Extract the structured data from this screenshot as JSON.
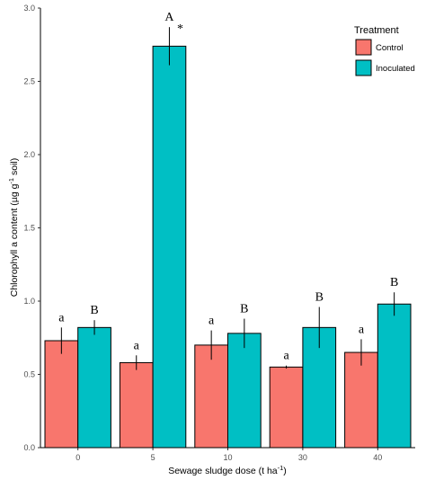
{
  "chart_data": {
    "type": "bar",
    "title": "",
    "xlabel": "Sewage sludge dose (t ha",
    "xlabel_sup": "-1",
    "xlabel_end": ")",
    "ylabel": "Chlorophyll a content (µg g",
    "ylabel_sup": "-1",
    "ylabel_end": " soil)",
    "categories": [
      "0",
      "5",
      "10",
      "30",
      "40"
    ],
    "ylim": [
      0,
      3.0
    ],
    "y_ticks": [
      "0.0",
      "0.5",
      "1.0",
      "1.5",
      "2.0",
      "2.5",
      "3.0"
    ],
    "grid": false,
    "legend_title": "Treatment",
    "legend_position": "top-right",
    "series": [
      {
        "name": "Control",
        "color": "#F8766D",
        "values": [
          0.73,
          0.58,
          0.7,
          0.55,
          0.65
        ],
        "errors": [
          0.09,
          0.05,
          0.1,
          0.01,
          0.09
        ],
        "letters": [
          "a",
          "a",
          "a",
          "a",
          "a"
        ]
      },
      {
        "name": "Inoculated",
        "color": "#00BFC4",
        "values": [
          0.82,
          2.74,
          0.78,
          0.82,
          0.98
        ],
        "errors": [
          0.05,
          0.13,
          0.1,
          0.14,
          0.08
        ],
        "letters": [
          "B",
          "A",
          "B",
          "B",
          "B"
        ]
      }
    ],
    "annotations": [
      {
        "category": "5",
        "series": "Inoculated",
        "text": "*"
      }
    ]
  }
}
